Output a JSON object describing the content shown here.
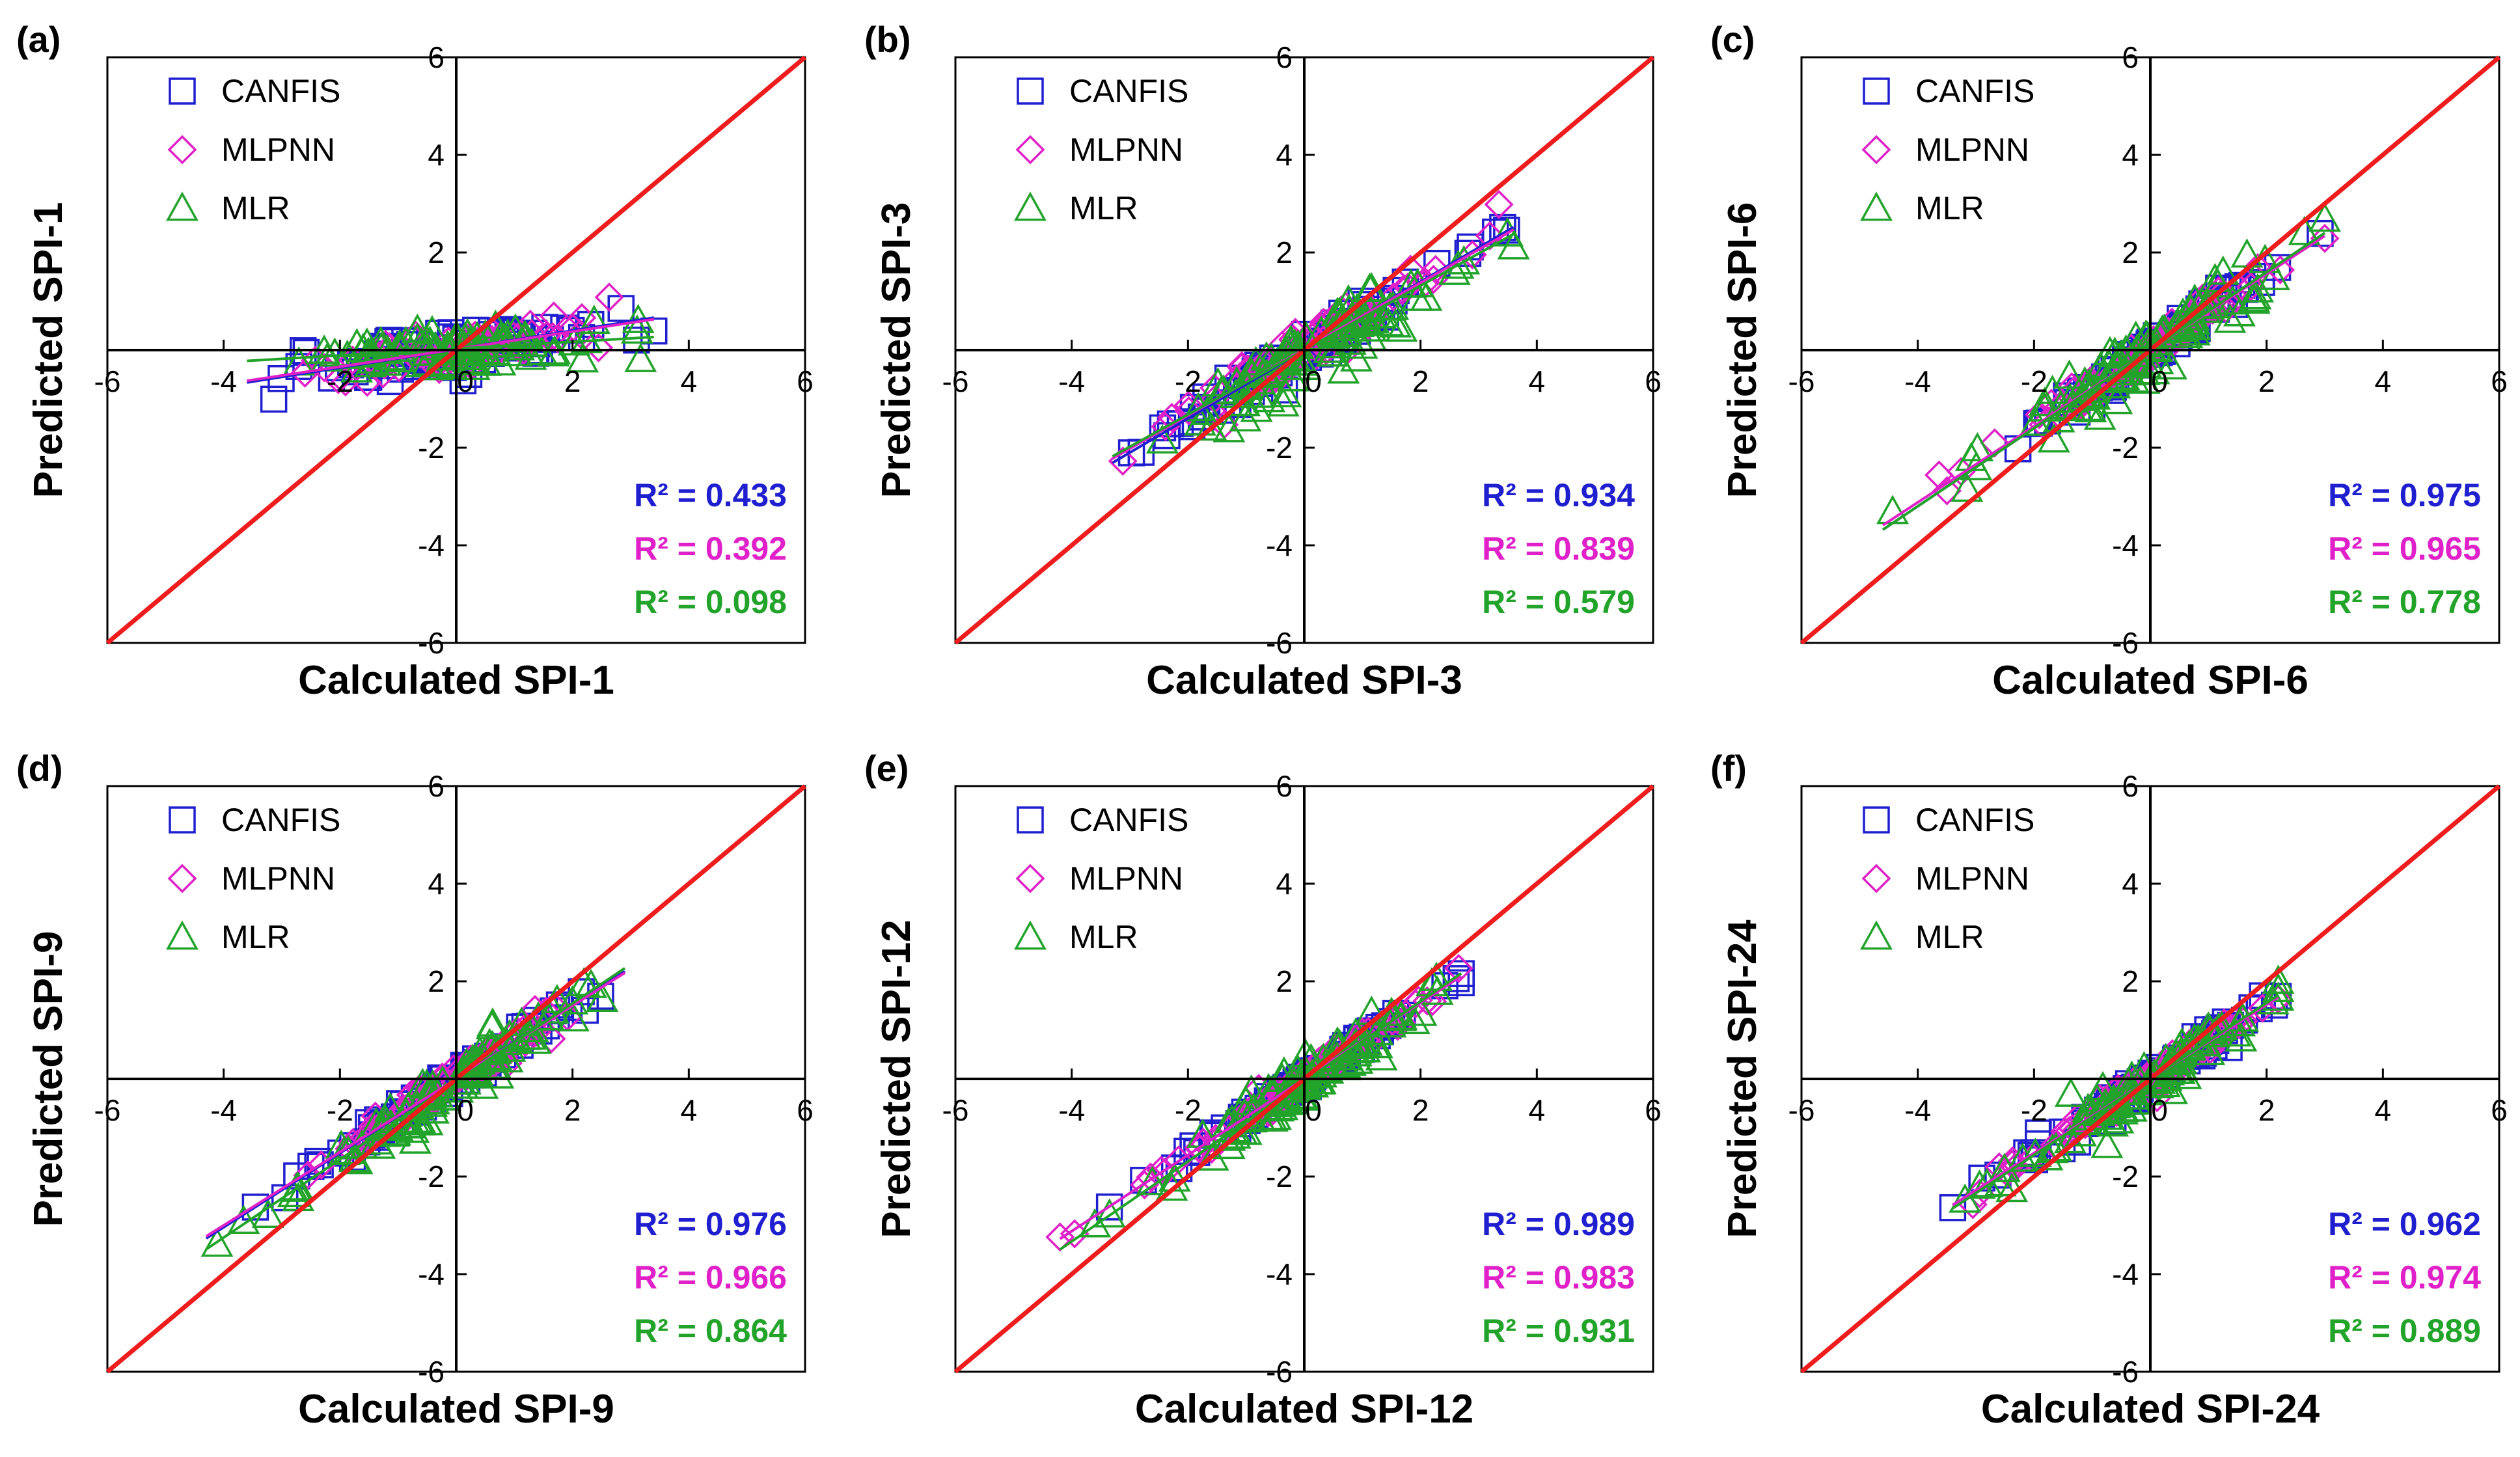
{
  "colors": {
    "CANFIS": "#1f1fd0",
    "MLPNN": "#e020c8",
    "MLR": "#22a32a",
    "reference_line": "#ee1c1c",
    "axes": "#000000"
  },
  "chart_data": [
    {
      "type": "scatter",
      "tag": "(a)",
      "xlabel": "Calculated SPI-1",
      "ylabel": "Predicted SPI-1",
      "xlim": [
        -6,
        6
      ],
      "ylim": [
        -6,
        6
      ],
      "xticks": [
        "-6",
        "-4",
        "-2",
        "0",
        "2",
        "4",
        "6"
      ],
      "yticks": [
        "-6",
        "-4",
        "-2",
        "0",
        "2",
        "4",
        "6"
      ],
      "legend": [
        "CANFIS",
        "MLPNN",
        "MLR"
      ],
      "legend_position": "top-left",
      "r2": [
        "R² = 0.433",
        "R² = 0.392",
        "R² = 0.098"
      ],
      "xrange": [
        -3.6,
        3.4
      ],
      "series": [
        {
          "name": "CANFIS",
          "marker": "square",
          "slope": 0.19,
          "intercept": 0.02,
          "spread": 0.33,
          "count": 85
        },
        {
          "name": "MLPNN",
          "marker": "diamond",
          "slope": 0.18,
          "intercept": 0.02,
          "spread": 0.32,
          "count": 80
        },
        {
          "name": "MLR",
          "marker": "triangle",
          "slope": 0.07,
          "intercept": 0.03,
          "spread": 0.3,
          "count": 90
        }
      ]
    },
    {
      "type": "scatter",
      "tag": "(b)",
      "xlabel": "Calculated SPI-3",
      "ylabel": "Predicted SPI-3",
      "xlim": [
        -6,
        6
      ],
      "ylim": [
        -6,
        6
      ],
      "xticks": [
        "-6",
        "-4",
        "-2",
        "0",
        "2",
        "4",
        "6"
      ],
      "yticks": [
        "-6",
        "-4",
        "-2",
        "0",
        "2",
        "4",
        "6"
      ],
      "legend": [
        "CANFIS",
        "MLPNN",
        "MLR"
      ],
      "legend_position": "top-left",
      "r2": [
        "R² = 0.934",
        "R² = 0.839",
        "R² = 0.579"
      ],
      "xrange": [
        -3.3,
        3.6
      ],
      "series": [
        {
          "name": "CANFIS",
          "marker": "square",
          "slope": 0.7,
          "intercept": 0.0,
          "spread": 0.25,
          "count": 85
        },
        {
          "name": "MLPNN",
          "marker": "diamond",
          "slope": 0.68,
          "intercept": 0.02,
          "spread": 0.33,
          "count": 80
        },
        {
          "name": "MLR",
          "marker": "triangle",
          "slope": 0.66,
          "intercept": 0.0,
          "spread": 0.55,
          "count": 95
        }
      ]
    },
    {
      "type": "scatter",
      "tag": "(c)",
      "xlabel": "Calculated SPI-6",
      "ylabel": "Predicted SPI-6",
      "xlim": [
        -6,
        6
      ],
      "ylim": [
        -6,
        6
      ],
      "xticks": [
        "-6",
        "-4",
        "-2",
        "0",
        "2",
        "4",
        "6"
      ],
      "yticks": [
        "-6",
        "-4",
        "-2",
        "0",
        "2",
        "4",
        "6"
      ],
      "legend": [
        "CANFIS",
        "MLPNN",
        "MLR"
      ],
      "legend_position": "top-left",
      "r2": [
        "R² = 0.975",
        "R² = 0.965",
        "R² = 0.778"
      ],
      "xrange": [
        -4.6,
        3.0
      ],
      "series": [
        {
          "name": "CANFIS",
          "marker": "square",
          "slope": 0.8,
          "intercept": 0.0,
          "spread": 0.2,
          "count": 85
        },
        {
          "name": "MLPNN",
          "marker": "diamond",
          "slope": 0.78,
          "intercept": 0.0,
          "spread": 0.22,
          "count": 80
        },
        {
          "name": "MLR",
          "marker": "triangle",
          "slope": 0.8,
          "intercept": 0.0,
          "spread": 0.45,
          "count": 95
        }
      ]
    },
    {
      "type": "scatter",
      "tag": "(d)",
      "xlabel": "Calculated SPI-9",
      "ylabel": "Predicted SPI-9",
      "xlim": [
        -6,
        6
      ],
      "ylim": [
        -6,
        6
      ],
      "xticks": [
        "-6",
        "-4",
        "-2",
        "0",
        "2",
        "4",
        "6"
      ],
      "yticks": [
        "-6",
        "-4",
        "-2",
        "0",
        "2",
        "4",
        "6"
      ],
      "legend": [
        "CANFIS",
        "MLPNN",
        "MLR"
      ],
      "legend_position": "top-left",
      "r2": [
        "R² = 0.976",
        "R² = 0.966",
        "R² = 0.864"
      ],
      "xrange": [
        -4.3,
        2.9
      ],
      "series": [
        {
          "name": "CANFIS",
          "marker": "square",
          "slope": 0.76,
          "intercept": 0.0,
          "spread": 0.18,
          "count": 85
        },
        {
          "name": "MLPNN",
          "marker": "diamond",
          "slope": 0.75,
          "intercept": 0.0,
          "spread": 0.2,
          "count": 80
        },
        {
          "name": "MLR",
          "marker": "triangle",
          "slope": 0.8,
          "intercept": -0.05,
          "spread": 0.35,
          "count": 95
        }
      ]
    },
    {
      "type": "scatter",
      "tag": "(e)",
      "xlabel": "Calculated SPI-12",
      "ylabel": "Predicted SPI-12",
      "xlim": [
        -6,
        6
      ],
      "ylim": [
        -6,
        6
      ],
      "xticks": [
        "-6",
        "-4",
        "-2",
        "0",
        "2",
        "4",
        "6"
      ],
      "yticks": [
        "-6",
        "-4",
        "-2",
        "0",
        "2",
        "4",
        "6"
      ],
      "legend": [
        "CANFIS",
        "MLPNN",
        "MLR"
      ],
      "legend_position": "top-left",
      "r2": [
        "R² = 0.989",
        "R² = 0.983",
        "R² = 0.931"
      ],
      "xrange": [
        -4.2,
        2.7
      ],
      "series": [
        {
          "name": "CANFIS",
          "marker": "square",
          "slope": 0.78,
          "intercept": 0.0,
          "spread": 0.13,
          "count": 85
        },
        {
          "name": "MLPNN",
          "marker": "diamond",
          "slope": 0.78,
          "intercept": 0.0,
          "spread": 0.15,
          "count": 80
        },
        {
          "name": "MLR",
          "marker": "triangle",
          "slope": 0.82,
          "intercept": -0.05,
          "spread": 0.3,
          "count": 95
        }
      ]
    },
    {
      "type": "scatter",
      "tag": "(f)",
      "xlabel": "Calculated SPI-24",
      "ylabel": "Predicted SPI-24",
      "xlim": [
        -6,
        6
      ],
      "ylim": [
        -6,
        6
      ],
      "xticks": [
        "-6",
        "-4",
        "-2",
        "0",
        "2",
        "4",
        "6"
      ],
      "yticks": [
        "-6",
        "-4",
        "-2",
        "0",
        "2",
        "4",
        "6"
      ],
      "legend": [
        "CANFIS",
        "MLPNN",
        "MLR"
      ],
      "legend_position": "top-left",
      "r2": [
        "R² = 0.962",
        "R² = 0.974",
        "R² = 0.889"
      ],
      "xrange": [
        -3.4,
        2.2
      ],
      "series": [
        {
          "name": "CANFIS",
          "marker": "square",
          "slope": 0.76,
          "intercept": 0.0,
          "spread": 0.2,
          "count": 85
        },
        {
          "name": "MLPNN",
          "marker": "diamond",
          "slope": 0.76,
          "intercept": 0.0,
          "spread": 0.18,
          "count": 80
        },
        {
          "name": "MLR",
          "marker": "triangle",
          "slope": 0.78,
          "intercept": 0.0,
          "spread": 0.3,
          "count": 95
        }
      ]
    }
  ]
}
